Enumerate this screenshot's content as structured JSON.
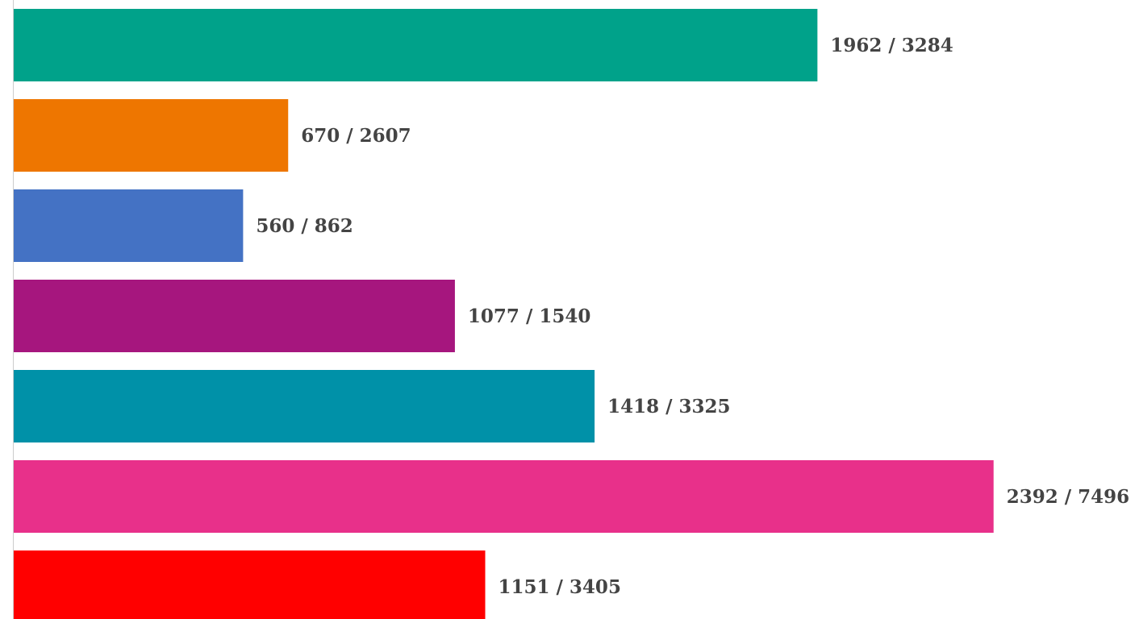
{
  "chart_data": {
    "type": "bar",
    "orientation": "horizontal",
    "values": [
      1962,
      670,
      560,
      1077,
      1418,
      2392,
      1151
    ],
    "value_labels": [
      "1962 / 3284",
      "670 / 2607",
      "560 / 862",
      "1077 / 1540",
      "1418 / 3325",
      "2392 / 7496",
      "1151 / 3405"
    ],
    "colors": [
      "#00a28a",
      "#ee7600",
      "#4472c4",
      "#a6167e",
      "#0091a8",
      "#e8308a",
      "#ff0000"
    ],
    "xlim": [
      0,
      2747
    ]
  }
}
